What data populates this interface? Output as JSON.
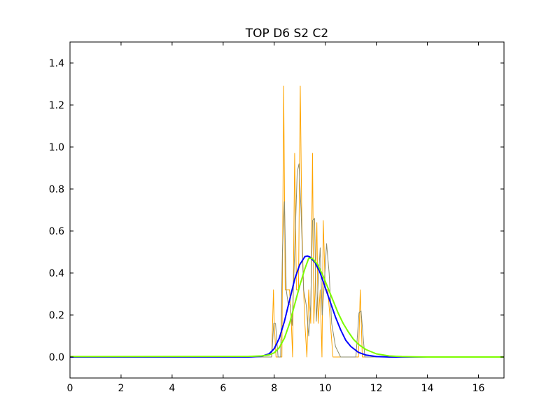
{
  "chart_data": {
    "type": "line",
    "title": "TOP D6 S2 C2",
    "xlabel": "",
    "ylabel": "",
    "xlim": [
      0,
      17
    ],
    "ylim": [
      -0.1,
      1.5
    ],
    "grid": false,
    "xticks": [
      0,
      2,
      4,
      6,
      8,
      10,
      12,
      14,
      16
    ],
    "yticks": [
      0.0,
      0.2,
      0.4,
      0.6,
      0.8,
      1.0,
      1.2,
      1.4
    ],
    "xtick_labels": [
      "0",
      "2",
      "4",
      "6",
      "8",
      "10",
      "12",
      "14",
      "16"
    ],
    "ytick_labels": [
      "0.0",
      "0.2",
      "0.4",
      "0.6",
      "0.8",
      "1.0",
      "1.2",
      "1.4"
    ],
    "series": [
      {
        "color": "#ffa500",
        "kind": "histogram",
        "x": [
          0,
          7.8,
          7.9,
          7.97,
          8.0,
          8.07,
          8.15,
          8.3,
          8.37,
          8.43,
          8.5,
          8.6,
          8.67,
          8.72,
          8.8,
          8.87,
          8.95,
          9.02,
          9.08,
          9.15,
          9.2,
          9.28,
          9.35,
          9.43,
          9.5,
          9.55,
          9.6,
          9.67,
          9.72,
          9.8,
          9.87,
          9.92,
          10.0,
          10.07,
          10.1,
          10.2,
          10.3,
          10.5,
          11.2,
          11.3,
          11.37,
          11.45,
          11.5,
          17
        ],
        "y": [
          0,
          0,
          0,
          0.32,
          0.16,
          0,
          0,
          0,
          1.29,
          0.32,
          0.32,
          0.32,
          0.16,
          0,
          0.97,
          0.32,
          0.32,
          1.29,
          0.65,
          0.32,
          0.16,
          0,
          0.32,
          0.16,
          0.97,
          0.16,
          0.32,
          0.64,
          0.16,
          0.32,
          0,
          0.65,
          0.32,
          0.32,
          0.32,
          0.16,
          0,
          0,
          0,
          0,
          0.32,
          0,
          0,
          0
        ]
      },
      {
        "color": "#8b8b6b",
        "kind": "smoothed histogram",
        "x": [
          0,
          7.8,
          7.9,
          7.98,
          8.05,
          8.15,
          8.25,
          8.32,
          8.4,
          8.47,
          8.55,
          8.62,
          8.7,
          8.8,
          8.9,
          8.97,
          9.05,
          9.15,
          9.25,
          9.35,
          9.43,
          9.5,
          9.58,
          9.65,
          9.72,
          9.8,
          9.88,
          9.95,
          10.05,
          10.15,
          10.25,
          10.4,
          10.6,
          11.2,
          11.32,
          11.4,
          11.48,
          11.55,
          17
        ],
        "y": [
          0,
          0,
          0,
          0.16,
          0.16,
          0,
          0,
          0.5,
          0.74,
          0.32,
          0.25,
          0.25,
          0.15,
          0.5,
          0.88,
          0.92,
          0.7,
          0.32,
          0.25,
          0.1,
          0.25,
          0.65,
          0.66,
          0.17,
          0.35,
          0.52,
          0.2,
          0.33,
          0.54,
          0.4,
          0.16,
          0.05,
          0,
          0,
          0.21,
          0.22,
          0.1,
          0,
          0
        ]
      },
      {
        "color": "#0000ff",
        "kind": "fit",
        "x": [
          0,
          7.0,
          7.5,
          7.8,
          8.0,
          8.2,
          8.4,
          8.6,
          8.8,
          9.0,
          9.2,
          9.3,
          9.4,
          9.6,
          9.8,
          10.0,
          10.2,
          10.4,
          10.6,
          10.8,
          11.0,
          11.3,
          11.6,
          12.0,
          12.5,
          13.0,
          17
        ],
        "y": [
          0,
          0,
          0.003,
          0.015,
          0.04,
          0.09,
          0.17,
          0.27,
          0.37,
          0.44,
          0.478,
          0.481,
          0.476,
          0.45,
          0.4,
          0.33,
          0.26,
          0.19,
          0.13,
          0.08,
          0.05,
          0.022,
          0.009,
          0.002,
          0,
          0,
          0
        ]
      },
      {
        "color": "#7cfc00",
        "kind": "fit",
        "x": [
          0,
          7.0,
          7.5,
          7.8,
          8.0,
          8.2,
          8.4,
          8.6,
          8.8,
          9.0,
          9.2,
          9.35,
          9.5,
          9.7,
          9.9,
          10.1,
          10.3,
          10.5,
          10.7,
          10.9,
          11.1,
          11.3,
          11.6,
          12.0,
          12.5,
          13.0,
          13.5,
          14.0,
          17
        ],
        "y": [
          0.002,
          0.003,
          0.005,
          0.01,
          0.02,
          0.045,
          0.09,
          0.16,
          0.25,
          0.34,
          0.42,
          0.47,
          0.47,
          0.44,
          0.39,
          0.33,
          0.27,
          0.21,
          0.16,
          0.12,
          0.085,
          0.06,
          0.035,
          0.015,
          0.005,
          0.002,
          0.001,
          0,
          0
        ]
      }
    ]
  }
}
